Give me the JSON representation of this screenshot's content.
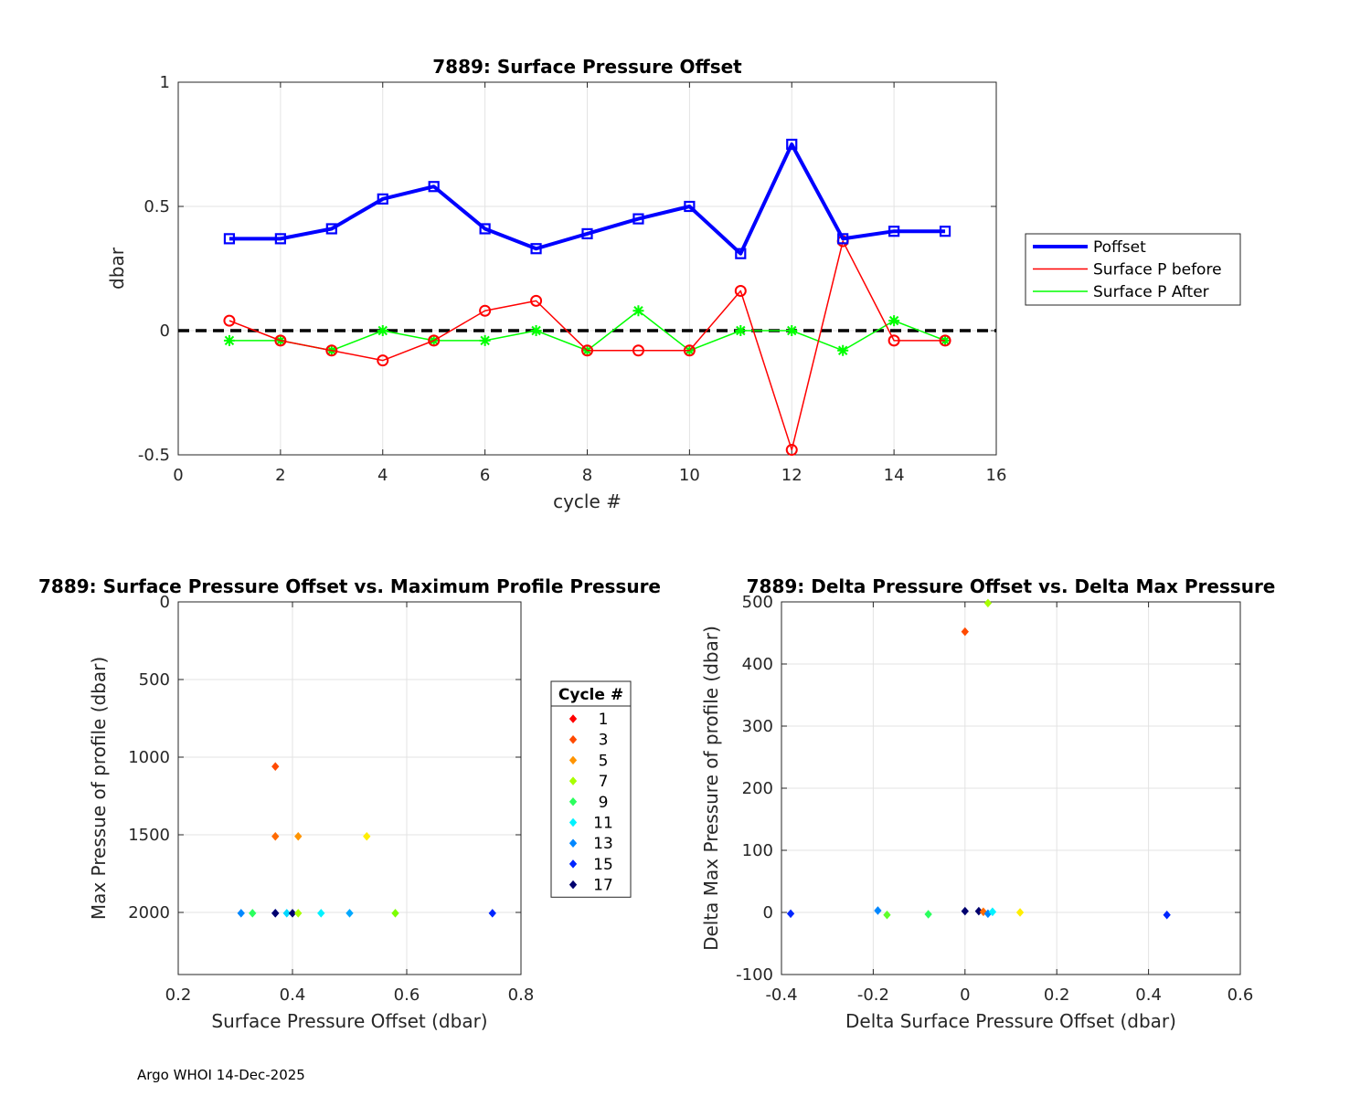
{
  "footer": "Argo WHOI 14-Dec-2025",
  "chart_data": [
    {
      "id": "top",
      "type": "line",
      "title": "7889: Surface Pressure Offset",
      "xlabel": "cycle #",
      "ylabel": "dbar",
      "xlim": [
        0,
        16
      ],
      "ylim": [
        -0.5,
        1
      ],
      "xticks": [
        0,
        2,
        4,
        6,
        8,
        10,
        12,
        14,
        16
      ],
      "yticks": [
        -0.5,
        0,
        0.5,
        1
      ],
      "grid": true,
      "legend_position": "outside-right",
      "x": [
        1,
        2,
        3,
        4,
        5,
        6,
        7,
        8,
        9,
        10,
        11,
        12,
        13,
        14,
        15
      ],
      "reference_line": {
        "y": 0,
        "style": "dashed",
        "color": "#000000"
      },
      "series": [
        {
          "name": "Poffset",
          "color": "#0000ff",
          "marker": "square",
          "width": 4,
          "values": [
            0.37,
            0.37,
            0.41,
            0.53,
            0.58,
            0.41,
            0.33,
            0.39,
            0.45,
            0.5,
            0.31,
            0.75,
            0.37,
            0.4,
            0.4
          ]
        },
        {
          "name": "Surface P before",
          "color": "#ff0000",
          "marker": "circle",
          "width": 1.5,
          "values": [
            0.04,
            -0.04,
            -0.08,
            -0.12,
            -0.04,
            0.08,
            0.12,
            -0.08,
            -0.08,
            -0.08,
            0.16,
            -0.48,
            0.36,
            -0.04,
            -0.04
          ]
        },
        {
          "name": "Surface P After",
          "color": "#00ff00",
          "marker": "star",
          "width": 1.5,
          "values": [
            -0.04,
            -0.04,
            -0.08,
            0.0,
            -0.04,
            -0.04,
            0.0,
            -0.08,
            0.08,
            -0.08,
            0.0,
            0.0,
            -0.08,
            0.04,
            -0.04
          ]
        }
      ]
    },
    {
      "id": "bottom_left",
      "type": "scatter",
      "title": "7889: Surface Pressure Offset vs. Maximum Profile Pressure",
      "xlabel": "Surface Pressure Offset (dbar)",
      "ylabel": "Max Pressue of profile (dbar)",
      "xlim": [
        0.2,
        0.8
      ],
      "ylim": [
        0,
        2400
      ],
      "y_reversed": true,
      "xticks": [
        0.2,
        0.4,
        0.6,
        0.8
      ],
      "yticks": [
        0,
        500,
        1000,
        1500,
        2000
      ],
      "grid": true,
      "legend_title": "Cycle #",
      "legend_entries": [
        {
          "label": "1",
          "color": "#ff0000"
        },
        {
          "label": "3",
          "color": "#ff4a00"
        },
        {
          "label": "5",
          "color": "#ff9400"
        },
        {
          "label": "7",
          "color": "#a8ff00"
        },
        {
          "label": "9",
          "color": "#2bff5e"
        },
        {
          "label": "11",
          "color": "#00f2ff"
        },
        {
          "label": "13",
          "color": "#0087ff"
        },
        {
          "label": "15",
          "color": "#0026ff"
        },
        {
          "label": "17",
          "color": "#00006e"
        }
      ],
      "points": [
        {
          "x": 0.37,
          "y": 1060,
          "color": "#ff4a00"
        },
        {
          "x": 0.37,
          "y": 1510,
          "color": "#ff6a00"
        },
        {
          "x": 0.41,
          "y": 1510,
          "color": "#ff9400"
        },
        {
          "x": 0.53,
          "y": 1510,
          "color": "#ffee00"
        },
        {
          "x": 0.31,
          "y": 2005,
          "color": "#0087ff"
        },
        {
          "x": 0.33,
          "y": 2005,
          "color": "#2bff5e"
        },
        {
          "x": 0.37,
          "y": 2005,
          "color": "#0026ff"
        },
        {
          "x": 0.37,
          "y": 2005,
          "color": "#00006e"
        },
        {
          "x": 0.39,
          "y": 2005,
          "color": "#00d8ff"
        },
        {
          "x": 0.4,
          "y": 2005,
          "color": "#00006e"
        },
        {
          "x": 0.41,
          "y": 2005,
          "color": "#a8ff00"
        },
        {
          "x": 0.45,
          "y": 2005,
          "color": "#00f2ff"
        },
        {
          "x": 0.5,
          "y": 2005,
          "color": "#00a8ff"
        },
        {
          "x": 0.58,
          "y": 2005,
          "color": "#7cff00"
        },
        {
          "x": 0.75,
          "y": 2005,
          "color": "#0026ff"
        }
      ]
    },
    {
      "id": "bottom_right",
      "type": "scatter",
      "title": "7889: Delta Pressure Offset vs. Delta Max Pressure",
      "xlabel": "Delta Surface Pressure Offset (dbar)",
      "ylabel": "Delta Max Pressure of profile (dbar)",
      "xlim": [
        -0.4,
        0.6
      ],
      "ylim": [
        -100,
        500
      ],
      "xticks": [
        -0.4,
        -0.2,
        0,
        0.2,
        0.4,
        0.6
      ],
      "yticks": [
        -100,
        0,
        100,
        200,
        300,
        400,
        500
      ],
      "grid": true,
      "points": [
        {
          "x": 0.0,
          "y": 452,
          "color": "#ff4a00"
        },
        {
          "x": 0.05,
          "y": 498,
          "color": "#a8ff00"
        },
        {
          "x": -0.38,
          "y": -2,
          "color": "#0026ff"
        },
        {
          "x": -0.19,
          "y": 3,
          "color": "#0087ff"
        },
        {
          "x": -0.17,
          "y": -4,
          "color": "#5eff2b"
        },
        {
          "x": -0.08,
          "y": -3,
          "color": "#2bff5e"
        },
        {
          "x": 0.0,
          "y": 2,
          "color": "#00006e"
        },
        {
          "x": 0.03,
          "y": 2,
          "color": "#00006e"
        },
        {
          "x": 0.04,
          "y": 1,
          "color": "#ff6a00"
        },
        {
          "x": 0.05,
          "y": -2,
          "color": "#0087ff"
        },
        {
          "x": 0.06,
          "y": 1,
          "color": "#00f2ff"
        },
        {
          "x": 0.12,
          "y": 0,
          "color": "#ffee00"
        },
        {
          "x": 0.44,
          "y": -4,
          "color": "#0026ff"
        }
      ]
    }
  ]
}
